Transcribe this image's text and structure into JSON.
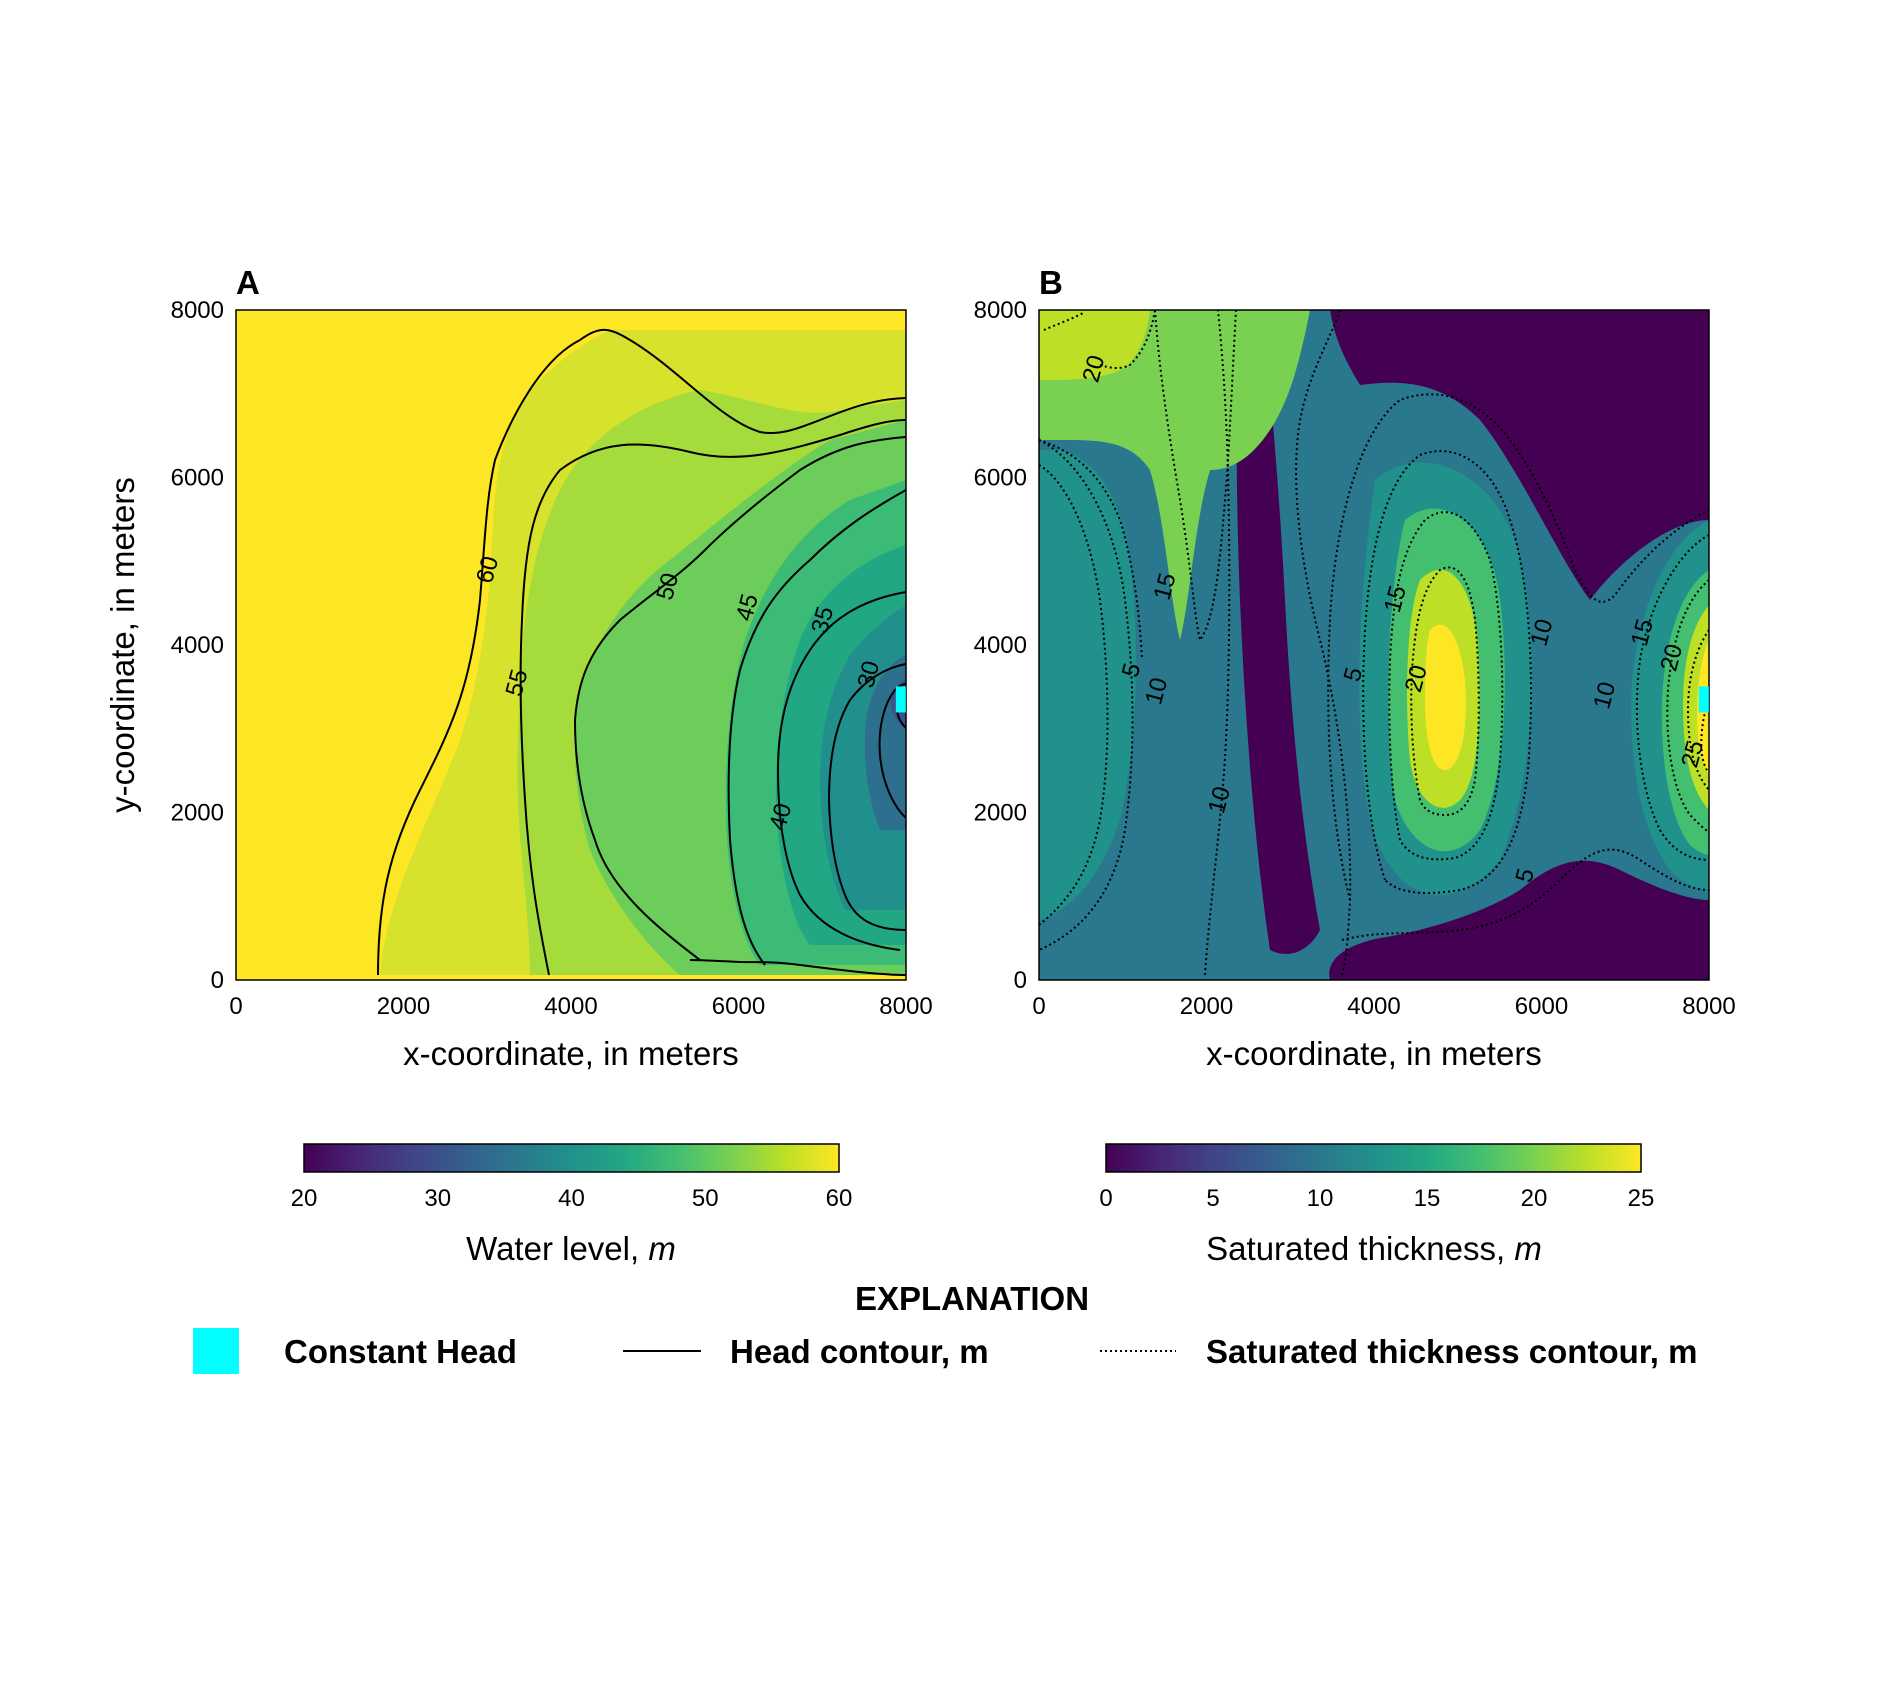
{
  "chart_data": [
    {
      "type": "heatmap",
      "panel": "A",
      "xlabel": "x-coordinate, in meters",
      "ylabel": "y-coordinate, in meters",
      "xlim": [
        0,
        8000
      ],
      "ylim": [
        0,
        8000
      ],
      "xticks": [
        "0",
        "2000",
        "4000",
        "6000",
        "8000"
      ],
      "yticks": [
        "0",
        "2000",
        "4000",
        "6000",
        "8000"
      ],
      "colormap": "viridis",
      "colorbar": {
        "label": "Water level, ",
        "label_unit": "m",
        "min": 20,
        "max": 60,
        "ticks": [
          "20",
          "30",
          "40",
          "50",
          "60"
        ]
      },
      "contour_labels": [
        {
          "text": "60",
          "x": 3000,
          "y": 4900
        },
        {
          "text": "55",
          "x": 3350,
          "y": 3550
        },
        {
          "text": "50",
          "x": 5150,
          "y": 4700
        },
        {
          "text": "45",
          "x": 6100,
          "y": 4450
        },
        {
          "text": "35",
          "x": 7000,
          "y": 4300
        },
        {
          "text": "30",
          "x": 7550,
          "y": 3650
        },
        {
          "text": "40",
          "x": 6500,
          "y": 1950
        }
      ],
      "constant_head": {
        "x": 7950,
        "y": 3350
      }
    },
    {
      "type": "heatmap",
      "panel": "B",
      "xlabel": "x-coordinate, in meters",
      "ylabel": "",
      "xlim": [
        0,
        8000
      ],
      "ylim": [
        0,
        8000
      ],
      "xticks": [
        "0",
        "2000",
        "4000",
        "6000",
        "8000"
      ],
      "yticks": [
        "0",
        "2000",
        "4000",
        "6000",
        "8000"
      ],
      "colormap": "viridis",
      "colorbar": {
        "label": "Saturated thickness, ",
        "label_unit": "m",
        "min": 0,
        "max": 25,
        "ticks": [
          "0",
          "5",
          "10",
          "15",
          "20",
          "25"
        ]
      },
      "contour_labels": [
        {
          "text": "20",
          "x": 650,
          "y": 7300
        },
        {
          "text": "15",
          "x": 1500,
          "y": 4700
        },
        {
          "text": "5",
          "x": 1100,
          "y": 3700
        },
        {
          "text": "10",
          "x": 1400,
          "y": 3450
        },
        {
          "text": "10",
          "x": 2150,
          "y": 2150
        },
        {
          "text": "5",
          "x": 3750,
          "y": 3650
        },
        {
          "text": "15",
          "x": 4250,
          "y": 4550
        },
        {
          "text": "20",
          "x": 4500,
          "y": 3600
        },
        {
          "text": "10",
          "x": 6000,
          "y": 4150
        },
        {
          "text": "10",
          "x": 6750,
          "y": 3400
        },
        {
          "text": "15",
          "x": 7200,
          "y": 4150
        },
        {
          "text": "20",
          "x": 7550,
          "y": 3850
        },
        {
          "text": "25",
          "x": 7800,
          "y": 2700
        },
        {
          "text": "5",
          "x": 5800,
          "y": 1250
        }
      ],
      "constant_head": {
        "x": 7950,
        "y": 3350
      }
    }
  ],
  "legend": {
    "title": "EXPLANATION",
    "items": [
      {
        "label": "Constant Head",
        "swatch": "square",
        "color": "#00ffff"
      },
      {
        "label": "Head contour, m",
        "swatch": "solid-line",
        "color": "#000000"
      },
      {
        "label": "Saturated thickness contour, m",
        "swatch": "dotted-line",
        "color": "#000000"
      }
    ]
  },
  "colors": {
    "constant_head": "#00ffff",
    "contour": "#000000",
    "background": "#ffffff"
  }
}
